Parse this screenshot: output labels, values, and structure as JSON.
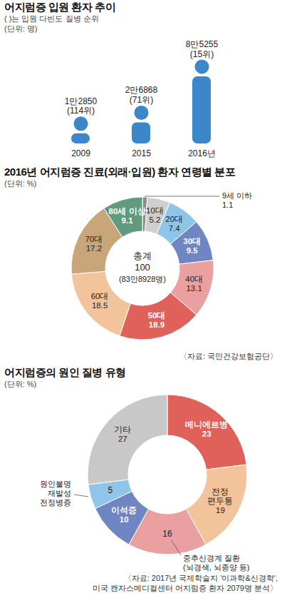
{
  "chart_data": [
    {
      "type": "pictogram",
      "title": "어지럼증 입원 환자 추이",
      "subtitle": "(   )는 입원 다빈도 질병 순위",
      "unit": "(단위: 명)",
      "categories": [
        "2009",
        "2015",
        "2016년"
      ],
      "values": [
        12850,
        26868,
        85255
      ],
      "value_labels": [
        "1만2850",
        "2만6868",
        "8만5255"
      ],
      "rank_labels": [
        "(114위)",
        "(71위)",
        "(15위)"
      ],
      "ylim": [
        0,
        85255
      ],
      "tick_labels": "x",
      "data_labels": true,
      "color": "#3b87c9"
    },
    {
      "type": "donut",
      "title": "2016년 어지럼증 진료(외래·입원) 환자 연령별 분포",
      "unit": "(단위: %)",
      "categories": [
        "9세 이하",
        "10대",
        "20대",
        "30대",
        "40대",
        "50대",
        "60대",
        "70대",
        "80세 이상"
      ],
      "values": [
        1.1,
        5.2,
        7.4,
        9.5,
        13.1,
        18.9,
        18.5,
        17.2,
        9.1
      ],
      "colors": [
        "#8c8c8c",
        "#cfcfcf",
        "#8ec5ea",
        "#6f86c2",
        "#eaa0a0",
        "#e0605a",
        "#f3c49b",
        "#c9a57a",
        "#5f9b7c"
      ],
      "data_labels": true,
      "center_label": "총계",
      "total": 100,
      "total_label": "(83만8928명)",
      "source": [
        "〈자료: 국민건강보험공단〉"
      ]
    },
    {
      "type": "donut",
      "title": "어지럼증의 원인 질병 유형",
      "unit": "(단위: %)",
      "categories": [
        "메니에르병",
        "전정\n편두통",
        "중추신경계 질환\n(뇌경색, 뇌종양 등)",
        "이석증",
        "원인불명\n재발성\n전정병증",
        "기타"
      ],
      "values": [
        23,
        19,
        16,
        10,
        5,
        27
      ],
      "colors": [
        "#e0605a",
        "#f3c49b",
        "#eaa0a0",
        "#6f86c2",
        "#8ec5ea",
        "#c8c8c8"
      ],
      "data_labels": true,
      "source": [
        "〈자료: 2017년 국제학술지 '이과학&신경학',",
        "미국 캔자스메디컬센터 어지럼증 환자 2079명 분석〉"
      ]
    }
  ]
}
